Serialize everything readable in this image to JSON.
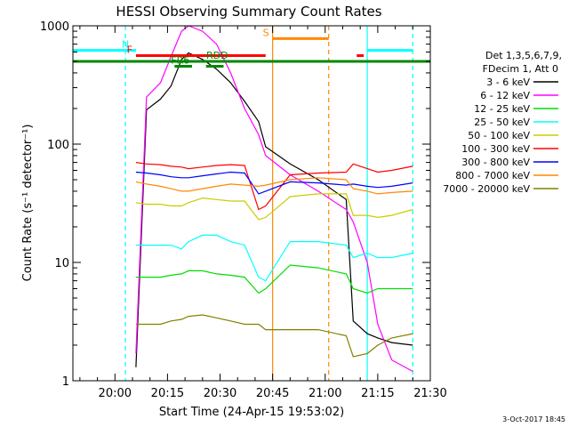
{
  "chart_data": {
    "type": "line",
    "title": "HESSI Observing Summary Count Rates",
    "xlabel": "Start Time (24-Apr-15 19:53:02)",
    "ylabel": "Count Rate (s⁻¹ detector⁻¹)",
    "yscale": "log",
    "ylim": [
      1,
      1000
    ],
    "xlim_minutes": [
      -5,
      97
    ],
    "x_tick_labels": [
      "20:00",
      "20:15",
      "20:30",
      "20:45",
      "21:00",
      "21:15",
      "21:30"
    ],
    "y_tick_labels": [
      "1",
      "10",
      "100",
      "1000"
    ],
    "legend_header": [
      "Det 1,3,5,6,7,9,",
      "FDecim 1, Att 0"
    ],
    "grid": false,
    "date_stamp": "3-Oct-2017 18:45",
    "x_time_minutes_since_1953": [
      13,
      16,
      20,
      23,
      26,
      28,
      32,
      36,
      40,
      44,
      48,
      50,
      57,
      65,
      73,
      75,
      79,
      82,
      86,
      92
    ],
    "series": [
      {
        "name": "3 - 6 keV",
        "color": "#000000",
        "values": [
          1.3,
          195,
          240,
          310,
          520,
          590,
          520,
          430,
          330,
          230,
          155,
          95,
          68,
          50,
          34,
          3.2,
          2.5,
          2.3,
          2.1,
          2.0
        ]
      },
      {
        "name": "6 - 12 keV",
        "color": "#ff00ff",
        "values": [
          1.7,
          250,
          330,
          550,
          900,
          1000,
          900,
          700,
          400,
          200,
          120,
          80,
          55,
          40,
          28,
          22,
          10,
          3.0,
          1.5,
          1.2
        ]
      },
      {
        "name": "12 - 25 keV",
        "color": "#00dd00",
        "values": [
          7.5,
          7.5,
          7.5,
          7.8,
          8.0,
          8.5,
          8.5,
          8.0,
          7.8,
          7.5,
          5.5,
          6.0,
          9.5,
          9.0,
          8.0,
          6.0,
          5.5,
          6.0,
          6.0,
          6.0
        ]
      },
      {
        "name": "25 - 50 keV",
        "color": "#00ffff",
        "values": [
          14,
          14,
          14,
          14,
          13,
          15,
          17,
          17,
          15,
          14,
          7.5,
          7.0,
          15,
          15,
          14,
          11,
          12,
          11,
          11,
          12
        ]
      },
      {
        "name": "50 - 100 keV",
        "color": "#cccc00",
        "values": [
          32,
          31,
          31,
          30,
          30,
          32,
          35,
          34,
          33,
          33,
          23,
          24,
          36,
          38,
          38,
          25,
          25,
          24,
          25,
          28
        ]
      },
      {
        "name": "100 - 300 keV",
        "color": "#ff0000",
        "values": [
          70,
          68,
          67,
          65,
          64,
          62,
          64,
          66,
          67,
          66,
          28,
          30,
          55,
          57,
          58,
          68,
          62,
          58,
          60,
          65
        ]
      },
      {
        "name": "300 - 800 keV",
        "color": "#0000ff",
        "values": [
          58,
          57,
          55,
          53,
          52,
          52,
          54,
          56,
          58,
          57,
          38,
          40,
          48,
          47,
          45,
          46,
          44,
          43,
          44,
          47
        ]
      },
      {
        "name": "800 - 7000 keV",
        "color": "#ff8800",
        "values": [
          48,
          46,
          44,
          42,
          40,
          40,
          42,
          44,
          46,
          45,
          44,
          45,
          50,
          52,
          50,
          42,
          40,
          38,
          39,
          40
        ]
      },
      {
        "name": "7000 - 20000 keV",
        "color": "#808000",
        "values": [
          3.0,
          3.0,
          3.0,
          3.2,
          3.3,
          3.5,
          3.6,
          3.4,
          3.2,
          3.0,
          3.0,
          2.7,
          2.7,
          2.7,
          2.4,
          1.6,
          1.7,
          2.0,
          2.3,
          2.5
        ]
      }
    ],
    "flags": [
      {
        "label": "N",
        "color": "#00ffff",
        "segments": [
          [
            -5,
            13
          ],
          [
            79,
            92
          ]
        ],
        "value": 620
      },
      {
        "label": "F",
        "color": "#ff0000",
        "segments": [
          [
            13,
            50
          ],
          [
            76,
            78
          ]
        ],
        "value": 560
      },
      {
        "label": "S",
        "color": "#ff8800",
        "segments": [
          [
            52,
            68
          ]
        ],
        "value": 780
      },
      {
        "label": "RDD",
        "color": "#008800",
        "segments": [
          [
            -5,
            97
          ]
        ],
        "value": 500
      },
      {
        "label": "FR6",
        "color": "#008800",
        "segments": [
          [
            24,
            29
          ],
          [
            33,
            38
          ]
        ],
        "value": 455
      }
    ],
    "vlines": [
      {
        "x": 10,
        "color": "#00ffff",
        "style": "dashed"
      },
      {
        "x": 52,
        "color": "#ff8800",
        "style": "solid"
      },
      {
        "x": 68,
        "color": "#ff8800",
        "style": "dashed"
      },
      {
        "x": 79,
        "color": "#00ffff",
        "style": "solid"
      },
      {
        "x": 92,
        "color": "#00ffff",
        "style": "dashed"
      }
    ]
  }
}
